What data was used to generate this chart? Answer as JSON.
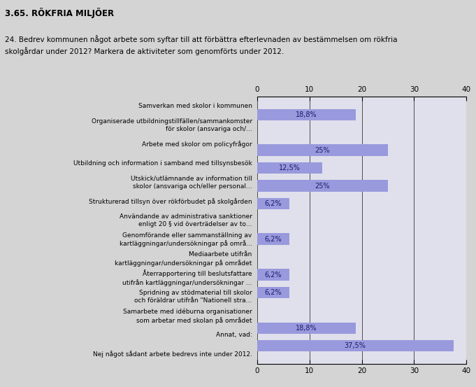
{
  "title": "3.65. RÖKFRIA MILJÖER",
  "subtitle": "24. Bedrev kommunen något arbete som syftar till att förbättra efterlevnaden av bestämmelsen om rökfria\nskolgårdar under 2012? Markera de aktiviteter som genomförts under 2012.",
  "categories": [
    "Samverkan med skolor i kommunen",
    "Organiserade utbildningstillfällen/sammankomster\nför skolor (ansvariga och/...",
    "Arbete med skolor om policyfrågor",
    "Utbildning och information i samband med tillsynsbesök",
    "Utskick/utlämnande av information till\nskolor (ansvariga och/eller personal...",
    "Strukturerad tillsyn över rökförbudet på skolgården",
    "Användande av administrativa sanktioner\nenligt 20 § vid överträdelser av to...",
    "Genomförande eller sammanställning av\nkartläggningar/undersökningar på områ...",
    "Mediaarbete utifrån\nkartläggningar/undersökningar på området",
    "Återrapportering till beslutsfattare\nutifrån kartläggningar/undersökningar ...",
    "Spridning av stödmaterial till skolor\noch föräldrar utifrån \"Nationell stra...",
    "Samarbete med idéburna organisationer\nsom arbetar med skolan på området",
    "Annat, vad:",
    "Nej något sådant arbete bedrevs inte under 2012."
  ],
  "values": [
    18.8,
    0,
    25,
    12.5,
    25,
    6.2,
    0,
    6.2,
    0,
    6.2,
    6.2,
    0,
    18.8,
    37.5
  ],
  "labels": [
    "18,8%",
    "",
    "25%",
    "12,5%",
    "25%",
    "6,2%",
    "",
    "6,2%",
    "",
    "6,2%",
    "6,2%",
    "",
    "18,8%",
    "37,5%"
  ],
  "bar_color": "#9999dd",
  "background_color": "#d4d4d4",
  "plot_background": "#e0e0ec",
  "xlim": [
    0,
    40
  ],
  "xticks": [
    0,
    10,
    20,
    30,
    40
  ],
  "title_fontsize": 8.5,
  "subtitle_fontsize": 7.5,
  "label_fontsize": 7,
  "tick_fontsize": 7.5,
  "cat_fontsize": 6.5
}
